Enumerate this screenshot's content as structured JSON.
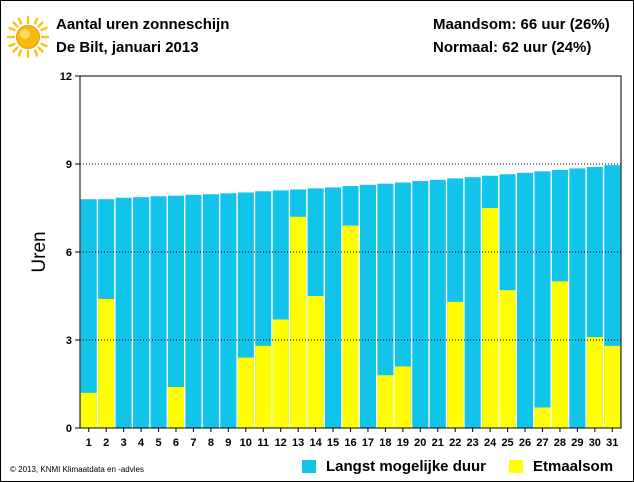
{
  "header": {
    "title": "Aantal uren zonneschijn",
    "subtitle": "De Bilt, januari 2013",
    "month_total": "Maandsom: 66 uur (26%)",
    "normal": "Normaal: 62 uur (24%)"
  },
  "footer": {
    "copyright": "© 2013, KNMI Klimaatdata en -advies"
  },
  "legend": {
    "max_label": "Langst mogelijke duur",
    "sum_label": "Etmaalsom"
  },
  "colors": {
    "max_duration": "#12c3ea",
    "daily_sum": "#ffff00",
    "grid": "#000000"
  },
  "chart_data": {
    "type": "bar",
    "ylabel": "Uren",
    "ylim": [
      0,
      12
    ],
    "yticks": [
      0,
      3,
      6,
      9,
      12
    ],
    "grid": true,
    "categories": [
      "1",
      "2",
      "3",
      "4",
      "5",
      "6",
      "7",
      "8",
      "9",
      "10",
      "11",
      "12",
      "13",
      "14",
      "15",
      "16",
      "17",
      "18",
      "19",
      "20",
      "21",
      "22",
      "23",
      "24",
      "25",
      "26",
      "27",
      "28",
      "29",
      "30",
      "31"
    ],
    "series": [
      {
        "name": "Langst mogelijke duur",
        "values": [
          7.8,
          7.8,
          7.85,
          7.87,
          7.9,
          7.92,
          7.95,
          7.97,
          8.0,
          8.03,
          8.07,
          8.1,
          8.13,
          8.17,
          8.2,
          8.25,
          8.29,
          8.33,
          8.37,
          8.42,
          8.46,
          8.51,
          8.55,
          8.6,
          8.65,
          8.7,
          8.75,
          8.8,
          8.85,
          8.9,
          8.96
        ]
      },
      {
        "name": "Etmaalsom",
        "values": [
          1.2,
          4.4,
          0,
          0,
          0,
          1.4,
          0,
          0,
          0,
          2.4,
          2.8,
          3.7,
          7.2,
          4.5,
          0,
          6.9,
          0,
          1.8,
          2.1,
          0,
          0,
          4.3,
          0,
          7.5,
          4.7,
          0,
          0.7,
          5.0,
          0,
          3.1,
          2.8
        ]
      }
    ]
  }
}
